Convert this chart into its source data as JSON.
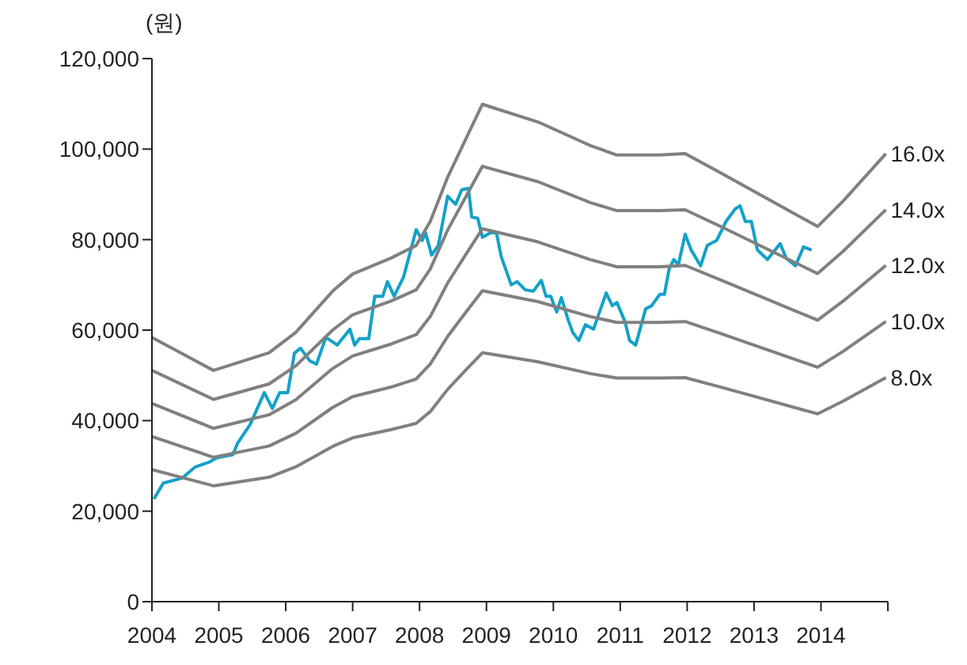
{
  "chart_data": {
    "type": "line",
    "ylabel": "(원)",
    "xlim": [
      2004,
      2015
    ],
    "xticks": [
      2004,
      2005,
      2006,
      2007,
      2008,
      2009,
      2010,
      2011,
      2012,
      2013,
      2014,
      {
        "value": 2015,
        "label": null
      }
    ],
    "ylim": [
      0,
      120000
    ],
    "yticks": [
      0,
      {
        "value": 20000,
        "label": "20,000"
      },
      {
        "value": 40000,
        "label": "40,000"
      },
      {
        "value": 60000,
        "label": "60,000"
      },
      {
        "value": 80000,
        "label": "80,000"
      },
      {
        "value": 100000,
        "label": "100,000"
      },
      {
        "value": 120000,
        "label": "120,000"
      }
    ],
    "grid": false,
    "legend": false,
    "series": [
      {
        "color": "#13a1c9",
        "x": [
          2004.03,
          2004.17,
          2004.45,
          2004.64,
          2004.85,
          2004.97,
          2005.21,
          2005.28,
          2005.47,
          2005.68,
          2005.8,
          2005.91,
          2006.03,
          2006.13,
          2006.22,
          2006.36,
          2006.46,
          2006.6,
          2006.77,
          2006.96,
          2007.03,
          2007.1,
          2007.24,
          2007.33,
          2007.45,
          2007.52,
          2007.62,
          2007.76,
          2007.95,
          2008.04,
          2008.09,
          2008.18,
          2008.28,
          2008.42,
          2008.54,
          2008.63,
          2008.73,
          2008.78,
          2008.87,
          2008.94,
          2009.06,
          2009.15,
          2009.22,
          2009.37,
          2009.46,
          2009.58,
          2009.7,
          2009.82,
          2009.89,
          2009.96,
          2010.05,
          2010.12,
          2010.22,
          2010.29,
          2010.38,
          2010.48,
          2010.6,
          2010.79,
          2010.88,
          2010.95,
          2011.07,
          2011.14,
          2011.23,
          2011.38,
          2011.47,
          2011.59,
          2011.66,
          2011.73,
          2011.8,
          2011.87,
          2011.97,
          2012.06,
          2012.2,
          2012.3,
          2012.44,
          2012.58,
          2012.72,
          2012.79,
          2012.87,
          2012.96,
          2013.05,
          2013.2,
          2013.39,
          2013.48,
          2013.62,
          2013.74,
          2013.86
        ],
        "values": [
          22700,
          26200,
          27300,
          29700,
          30800,
          31800,
          32500,
          35000,
          39200,
          46200,
          42700,
          46200,
          46200,
          54900,
          56000,
          53200,
          52500,
          58400,
          56700,
          60200,
          56700,
          58100,
          58100,
          67500,
          67500,
          70700,
          67500,
          71700,
          82200,
          79800,
          81500,
          76600,
          78700,
          89600,
          87800,
          91000,
          91300,
          85000,
          84700,
          80500,
          81500,
          81500,
          76300,
          70000,
          70700,
          68900,
          68600,
          71000,
          67500,
          67500,
          64000,
          67200,
          62300,
          59500,
          57700,
          61200,
          60200,
          68200,
          65400,
          66100,
          61900,
          57700,
          56700,
          64700,
          65400,
          67900,
          67900,
          73500,
          75600,
          74500,
          81200,
          77700,
          74200,
          78700,
          79800,
          84000,
          86800,
          87500,
          84000,
          84000,
          77700,
          75600,
          79100,
          75900,
          74200,
          78400,
          77700
        ]
      },
      {
        "name": "16.0x",
        "color": "#808080",
        "x": [
          2004,
          2004.92,
          2005.75,
          2006.15,
          2006.7,
          2007,
          2007.57,
          2007.95,
          2008.16,
          2008.42,
          2008.7,
          2008.94,
          2009.77,
          2010.55,
          2010.95,
          2011.59,
          2011.97,
          2012.53,
          2013.95,
          2014.33,
          2014.97
        ],
        "values": [
          58400,
          51100,
          55000,
          59500,
          68600,
          72400,
          75900,
          78700,
          84000,
          93800,
          102500,
          109900,
          106000,
          100800,
          98700,
          98700,
          99000,
          94500,
          82900,
          88500,
          99000
        ]
      },
      {
        "name": "14.0x",
        "color": "#808080",
        "x": [
          2004,
          2004.92,
          2005.75,
          2006.15,
          2006.7,
          2007,
          2007.57,
          2007.95,
          2008.16,
          2008.42,
          2008.7,
          2008.94,
          2009.77,
          2010.55,
          2010.95,
          2011.59,
          2011.97,
          2012.53,
          2013.95,
          2014.33,
          2014.97
        ],
        "values": [
          51100,
          44700,
          48100,
          52100,
          60000,
          63400,
          66400,
          68900,
          73500,
          82100,
          89700,
          96200,
          92800,
          88200,
          86400,
          86400,
          86600,
          82700,
          72500,
          77400,
          86600
        ]
      },
      {
        "name": "12.0x",
        "color": "#808080",
        "x": [
          2004,
          2004.92,
          2005.75,
          2006.15,
          2006.7,
          2007,
          2007.57,
          2007.95,
          2008.16,
          2008.42,
          2008.7,
          2008.94,
          2009.77,
          2010.55,
          2010.95,
          2011.59,
          2011.97,
          2012.53,
          2013.95,
          2014.33,
          2014.97
        ],
        "values": [
          43800,
          38300,
          41300,
          44600,
          51500,
          54300,
          56900,
          59000,
          63000,
          70400,
          76900,
          82400,
          79500,
          75600,
          74000,
          74000,
          74300,
          70900,
          62200,
          66400,
          74300
        ]
      },
      {
        "name": "10.0x",
        "color": "#808080",
        "x": [
          2004,
          2004.92,
          2005.75,
          2006.15,
          2006.7,
          2007,
          2007.57,
          2007.95,
          2008.16,
          2008.42,
          2008.7,
          2008.94,
          2009.77,
          2010.55,
          2010.95,
          2011.59,
          2011.97,
          2012.53,
          2013.95,
          2014.33,
          2014.97
        ],
        "values": [
          36500,
          31900,
          34400,
          37200,
          42900,
          45300,
          47400,
          49200,
          52500,
          58600,
          64100,
          68700,
          66300,
          63000,
          61700,
          61700,
          61900,
          59100,
          51800,
          55300,
          61900
        ]
      },
      {
        "name": "8.0x",
        "color": "#808080",
        "x": [
          2004,
          2004.92,
          2005.75,
          2006.15,
          2006.7,
          2007,
          2007.57,
          2007.95,
          2008.16,
          2008.42,
          2008.7,
          2008.94,
          2009.77,
          2010.55,
          2010.95,
          2011.59,
          2011.97,
          2012.53,
          2013.95,
          2014.33,
          2014.97
        ],
        "values": [
          29200,
          25600,
          27500,
          29800,
          34300,
          36200,
          38000,
          39400,
          42000,
          46900,
          51300,
          55000,
          53000,
          50400,
          49400,
          49400,
          49500,
          47300,
          41500,
          44300,
          49500
        ]
      }
    ]
  }
}
